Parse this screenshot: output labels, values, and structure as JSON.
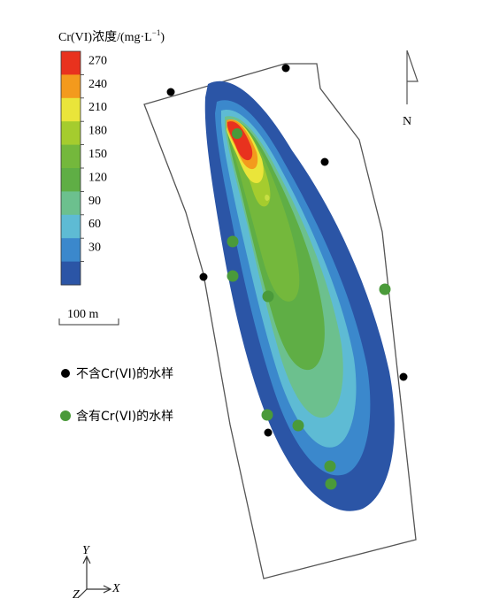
{
  "legend": {
    "title_prefix": "Cr(VI)浓度/(mg·L",
    "title_sup": "−1",
    "title_suffix": ")",
    "ticks": [
      "270",
      "240",
      "210",
      "180",
      "150",
      "120",
      "90",
      "60",
      "30"
    ],
    "colors": [
      "#e8321e",
      "#f39a1d",
      "#eae53a",
      "#a5cc2e",
      "#74b83c",
      "#5fae45",
      "#6cc08e",
      "#5ebbd4",
      "#3b88cc",
      "#2b55a6"
    ]
  },
  "scale_bar": {
    "label": "100 m"
  },
  "north_arrow": {
    "label": "N"
  },
  "samples_legend": {
    "no_cr": {
      "label": "不含Cr(VI)的水样",
      "color": "#000000"
    },
    "with_cr": {
      "label": "含有Cr(VI)的水样",
      "color": "#4a9a3a"
    }
  },
  "axes": {
    "y": "Y",
    "x": "X",
    "z": "Z"
  }
}
